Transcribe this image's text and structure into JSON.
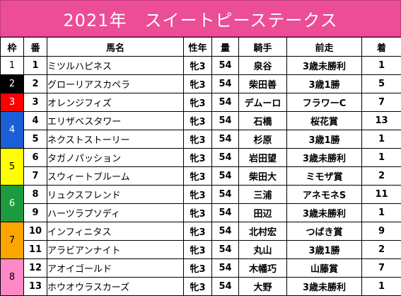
{
  "title": "2021年　スイートピーステークス",
  "headers": {
    "waku": "枠",
    "ban": "番",
    "name": "馬名",
    "sex": "性年",
    "kin": "量",
    "jockey": "騎手",
    "prev": "前走",
    "fav": "着"
  },
  "waku_colors": {
    "1": {
      "bg": "#ffffff",
      "fg": "#000000"
    },
    "2": {
      "bg": "#000000",
      "fg": "#ffffff"
    },
    "3": {
      "bg": "#ff0000",
      "fg": "#ffffff"
    },
    "4": {
      "bg": "#1a5fd6",
      "fg": "#ffffff"
    },
    "5": {
      "bg": "#ffff00",
      "fg": "#000000"
    },
    "6": {
      "bg": "#1e9a3e",
      "fg": "#ffffff"
    },
    "7": {
      "bg": "#ffa500",
      "fg": "#000000"
    },
    "8": {
      "bg": "#ff88c8",
      "fg": "#000000"
    }
  },
  "rows": [
    {
      "waku": "1",
      "ban": "1",
      "name": "ミツルハピネス",
      "sex": "牝3",
      "kin": "54",
      "jockey": "泉谷",
      "prev": "3歳未勝利",
      "fav": "1"
    },
    {
      "waku": "2",
      "ban": "2",
      "name": "グローリアスカペラ",
      "sex": "牝3",
      "kin": "54",
      "jockey": "柴田善",
      "prev": "3歳1勝",
      "fav": "5"
    },
    {
      "waku": "3",
      "ban": "3",
      "name": "オレンジフィズ",
      "sex": "牝3",
      "kin": "54",
      "jockey": "デムーロ",
      "prev": "フラワーC",
      "fav": "7"
    },
    {
      "waku": "4",
      "ban": "4",
      "name": "エリザベスタワー",
      "sex": "牝3",
      "kin": "54",
      "jockey": "石橋",
      "prev": "桜花賞",
      "fav": "13"
    },
    {
      "waku": "4",
      "ban": "5",
      "name": "ネクストストーリー",
      "sex": "牝3",
      "kin": "54",
      "jockey": "杉原",
      "prev": "3歳1勝",
      "fav": "1"
    },
    {
      "waku": "5",
      "ban": "6",
      "name": "タガノパッション",
      "sex": "牝3",
      "kin": "54",
      "jockey": "岩田望",
      "prev": "3歳未勝利",
      "fav": "1"
    },
    {
      "waku": "5",
      "ban": "7",
      "name": "スウィートブルーム",
      "sex": "牝3",
      "kin": "54",
      "jockey": "柴田大",
      "prev": "ミモザ賞",
      "fav": "2"
    },
    {
      "waku": "6",
      "ban": "8",
      "name": "リュクスフレンド",
      "sex": "牝3",
      "kin": "54",
      "jockey": "三浦",
      "prev": "アネモネS",
      "fav": "11"
    },
    {
      "waku": "6",
      "ban": "9",
      "name": "ハーツラプソディ",
      "sex": "牝3",
      "kin": "54",
      "jockey": "田辺",
      "prev": "3歳未勝利",
      "fav": "1"
    },
    {
      "waku": "7",
      "ban": "10",
      "name": "インフィニタス",
      "sex": "牝3",
      "kin": "54",
      "jockey": "北村宏",
      "prev": "つばき賞",
      "fav": "9"
    },
    {
      "waku": "7",
      "ban": "11",
      "name": "アラビアンナイト",
      "sex": "牝3",
      "kin": "54",
      "jockey": "丸山",
      "prev": "3歳1勝",
      "fav": "2"
    },
    {
      "waku": "8",
      "ban": "12",
      "name": "アオイゴールド",
      "sex": "牝3",
      "kin": "54",
      "jockey": "木幡巧",
      "prev": "山藤賞",
      "fav": "7"
    },
    {
      "waku": "8",
      "ban": "13",
      "name": "ホウオウラスカーズ",
      "sex": "牝3",
      "kin": "54",
      "jockey": "大野",
      "prev": "3歳未勝利",
      "fav": "1"
    }
  ]
}
